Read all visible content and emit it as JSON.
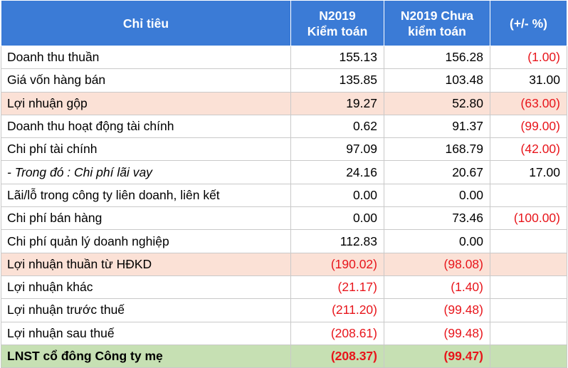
{
  "header": {
    "col_indicator": "Chỉ tiêu",
    "col_audited_line1": "N2019",
    "col_audited_line2": "Kiểm toán",
    "col_unaudited_line1": "N2019 Chưa",
    "col_unaudited_line2": "kiểm toán",
    "col_change": "(+/-  %)"
  },
  "colors": {
    "header_bg": "#3b7bd6",
    "highlight_peach": "#fbe1d6",
    "highlight_green": "#c6e0b3",
    "negative_text": "#e8151b"
  },
  "rows": [
    {
      "label": "Doanh thu thuần",
      "audited": "155.13",
      "unaudited": "156.28",
      "change": "(1.00)",
      "style": ""
    },
    {
      "label": "Giá vốn hàng bán",
      "audited": "135.85",
      "unaudited": "103.48",
      "change": "31.00",
      "style": ""
    },
    {
      "label": "Lợi nhuận gộp",
      "audited": "19.27",
      "unaudited": "52.80",
      "change": "(63.00)",
      "style": "peach"
    },
    {
      "label": "Doanh thu hoạt động tài chính",
      "audited": "0.62",
      "unaudited": "91.37",
      "change": "(99.00)",
      "style": ""
    },
    {
      "label": "Chi phí tài chính",
      "audited": "97.09",
      "unaudited": "168.79",
      "change": "(42.00)",
      "style": ""
    },
    {
      "label": "- Trong đó : Chi phí lãi vay",
      "audited": "24.16",
      "unaudited": "20.67",
      "change": "17.00",
      "style": "italic"
    },
    {
      "label": "Lãi/lỗ trong công ty liên doanh, liên kết",
      "audited": "0.00",
      "unaudited": "0.00",
      "change": "",
      "style": ""
    },
    {
      "label": "Chi phí bán hàng",
      "audited": "0.00",
      "unaudited": "73.46",
      "change": "(100.00)",
      "style": ""
    },
    {
      "label": "Chi phí quản lý doanh nghiệp",
      "audited": "112.83",
      "unaudited": "0.00",
      "change": "",
      "style": ""
    },
    {
      "label": "Lợi nhuận thuần từ HĐKD",
      "audited": "(190.02)",
      "unaudited": "(98.08)",
      "change": "",
      "style": "peach"
    },
    {
      "label": "Lợi nhuận khác",
      "audited": "(21.17)",
      "unaudited": "(1.40)",
      "change": "",
      "style": ""
    },
    {
      "label": "Lợi nhuận trước thuế",
      "audited": "(211.20)",
      "unaudited": "(99.48)",
      "change": "",
      "style": ""
    },
    {
      "label": "Lợi nhuận sau thuế",
      "audited": "(208.61)",
      "unaudited": "(99.48)",
      "change": "",
      "style": ""
    },
    {
      "label": "LNST cổ đông Công ty mẹ",
      "audited": "(208.37)",
      "unaudited": "(99.47)",
      "change": "",
      "style": "green"
    }
  ]
}
